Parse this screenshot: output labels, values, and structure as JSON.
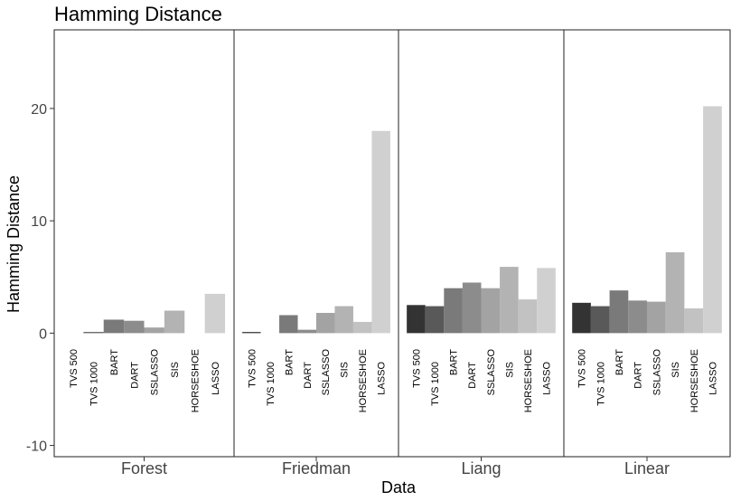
{
  "chart_data": {
    "type": "bar",
    "title": "Hamming Distance",
    "xlabel": "Data",
    "ylabel": "Hamming Distance",
    "ylim": [
      -11,
      27
    ],
    "yticks": [
      -10,
      0,
      10,
      20
    ],
    "methods": [
      "TVS 500",
      "TVS 1000",
      "BART",
      "DART",
      "SSLASSO",
      "SIS",
      "HORSESHOE",
      "LASSO"
    ],
    "method_colors": [
      "#333333",
      "#595959",
      "#7a7a7a",
      "#8c8c8c",
      "#a3a3a3",
      "#b3b3b3",
      "#c2c2c2",
      "#d0d0d0"
    ],
    "facets": [
      {
        "name": "Forest",
        "values": [
          0,
          0.1,
          1.2,
          1.1,
          0.5,
          2.0,
          0,
          3.5
        ]
      },
      {
        "name": "Friedman",
        "values": [
          0.1,
          0,
          1.6,
          0.3,
          1.8,
          2.4,
          1.0,
          18.0
        ]
      },
      {
        "name": "Liang",
        "values": [
          2.5,
          2.4,
          4.0,
          4.5,
          4.0,
          5.9,
          3.0,
          5.8
        ]
      },
      {
        "name": "Linear",
        "values": [
          2.7,
          2.4,
          3.8,
          2.9,
          2.8,
          7.2,
          2.2,
          20.2
        ]
      }
    ]
  }
}
